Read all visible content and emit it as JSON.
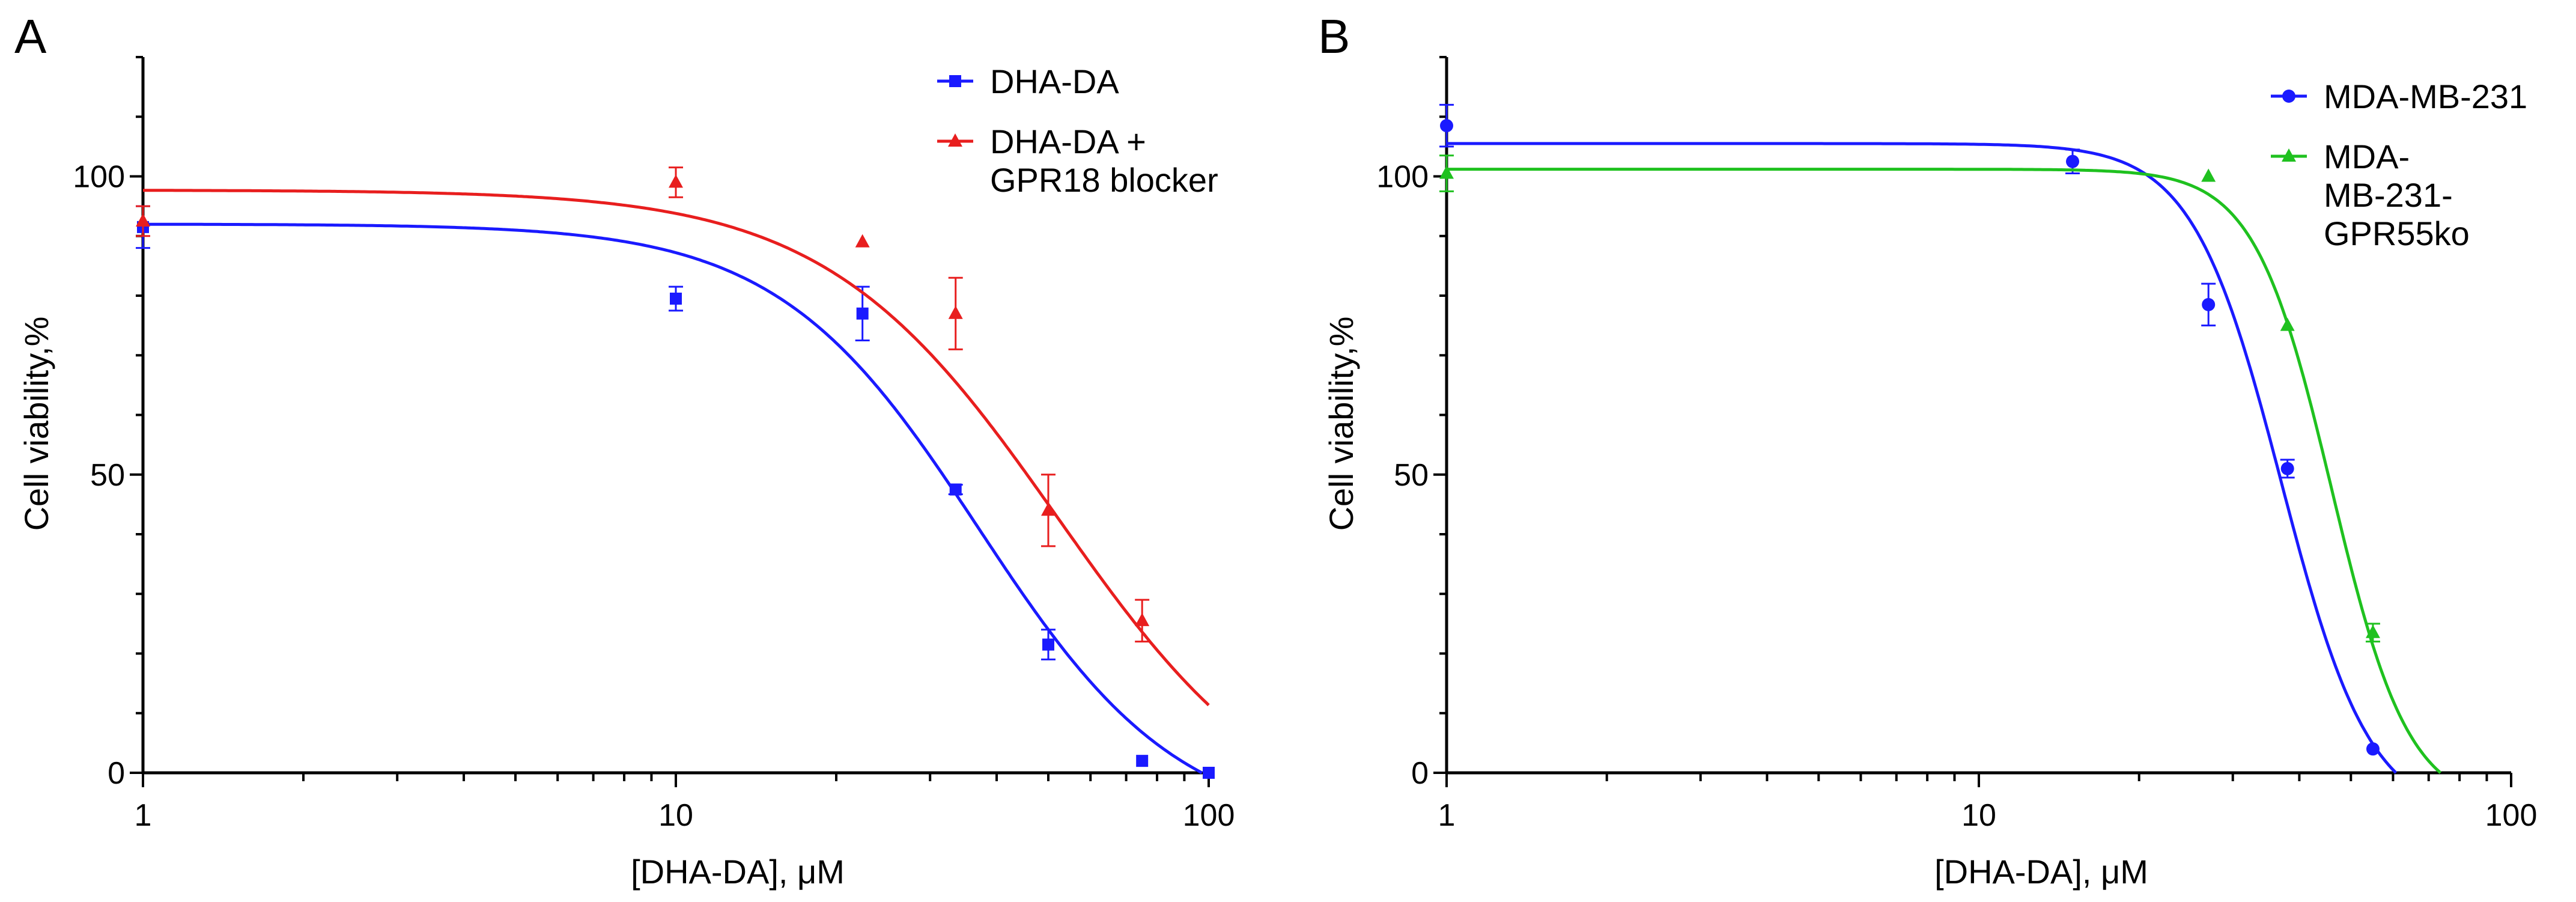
{
  "chart_data": [
    {
      "panel": "A",
      "type": "scatter",
      "x_scale": "log",
      "xlabel": "[DHA-DA], μM",
      "ylabel": "Cell viability,%",
      "xlim": [
        1,
        100
      ],
      "ylim": [
        0,
        120
      ],
      "x_tick_labels": [
        "1",
        "10",
        "100"
      ],
      "y_tick_labels": [
        "0",
        "50",
        "100"
      ],
      "legend_position": "top-right",
      "series": [
        {
          "name": "DHA-DA",
          "legend_lines": [
            "DHA-DA"
          ],
          "color": "#1a1aff",
          "marker": "square",
          "x": [
            1,
            10,
            22.4,
            33.5,
            50,
            75,
            100
          ],
          "y": [
            91.5,
            79.5,
            77,
            47.5,
            21.5,
            2,
            0
          ],
          "err": [
            3.5,
            2,
            4.5,
            0.8,
            2.5,
            0.5,
            0.5
          ],
          "fit": {
            "top": 92,
            "bottom": -10,
            "ec50": 37,
            "hill": 2.3
          }
        },
        {
          "name": "DHA-DA + GPR18 blocker",
          "legend_lines": [
            "DHA-DA +",
            "GPR18 blocker"
          ],
          "color": "#e81e1e",
          "marker": "triangle",
          "x": [
            1,
            10,
            22.4,
            33.5,
            50,
            75
          ],
          "y": [
            92.5,
            99,
            89,
            77,
            44,
            25.5
          ],
          "err": [
            2.5,
            2.5,
            0.5,
            6,
            6,
            3.5
          ],
          "fit": {
            "top": 97.7,
            "bottom": -12,
            "ec50": 52,
            "hill": 2.0
          }
        }
      ]
    },
    {
      "panel": "B",
      "type": "scatter",
      "x_scale": "log",
      "xlabel": "[DHA-DA], μM",
      "ylabel": "Cell viability,%",
      "xlim": [
        1,
        100
      ],
      "ylim": [
        0,
        120
      ],
      "x_tick_labels": [
        "1",
        "10",
        "100"
      ],
      "y_tick_labels": [
        "0",
        "50",
        "100"
      ],
      "legend_position": "top-right",
      "series": [
        {
          "name": "MDA-MB-231",
          "legend_lines": [
            "MDA-MB-231"
          ],
          "color": "#1a1aff",
          "marker": "circle",
          "x": [
            1,
            15,
            27,
            38,
            55
          ],
          "y": [
            108.5,
            102.5,
            78.5,
            51,
            4
          ],
          "err": [
            3.5,
            2,
            3.5,
            1.5,
            0.3
          ],
          "fit": {
            "top": 105.5,
            "bottom": -8,
            "ec50": 37,
            "hill": 5.2
          }
        },
        {
          "name": "MDA-MB-231-GPR55ko",
          "legend_lines": [
            "MDA-",
            "MB-231-",
            "GPR55ko"
          ],
          "color": "#1fc11f",
          "marker": "triangle",
          "x": [
            1,
            27,
            38,
            55
          ],
          "y": [
            100.5,
            100,
            75,
            23.5
          ],
          "err": [
            3,
            0.3,
            0.3,
            1.5
          ],
          "fit": {
            "top": 101.2,
            "bottom": -6,
            "ec50": 46,
            "hill": 6.0
          }
        }
      ]
    }
  ]
}
